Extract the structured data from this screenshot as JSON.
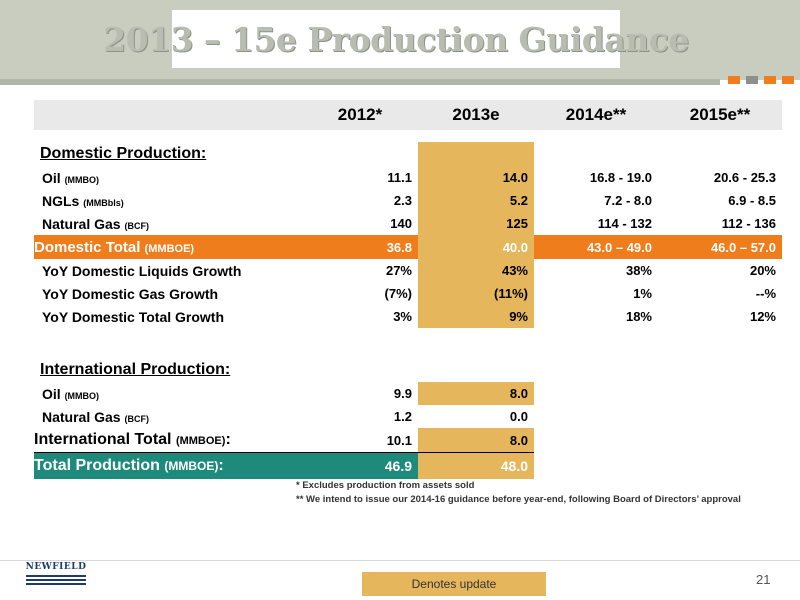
{
  "title": "2013 – 15e Production Guidance",
  "colors": {
    "banner": "#c9cdc0",
    "orange": "#f07d1c",
    "highlight": "#e5b65c",
    "teal": "#1e8a7c",
    "grey_square": "#8f8f8f"
  },
  "table": {
    "headers": [
      "",
      "2012*",
      "2013e",
      "2014e**",
      "2015e**"
    ],
    "domestic": {
      "heading": "Domestic Production:",
      "rows": [
        {
          "label": "Oil",
          "unit": "(MMBO)",
          "values": [
            "11.1",
            "14.0",
            "16.8 - 19.0",
            "20.6 - 25.3"
          ]
        },
        {
          "label": "NGLs",
          "unit": "(MMBbls)",
          "values": [
            "2.3",
            "5.2",
            "7.2 - 8.0",
            "6.9 - 8.5"
          ]
        },
        {
          "label": "Natural Gas",
          "unit": "(BCF)",
          "values": [
            "140",
            "125",
            "114 - 132",
            "112 - 136"
          ]
        }
      ],
      "total": {
        "label": "Domestic Total",
        "unit": "(MMBOE)",
        "values": [
          "36.8",
          "40.0",
          "43.0 – 49.0",
          "46.0 – 57.0"
        ]
      },
      "growth": [
        {
          "label": "YoY Domestic Liquids Growth",
          "values": [
            "27%",
            "43%",
            "38%",
            "20%"
          ]
        },
        {
          "label": "YoY Domestic Gas Growth",
          "values": [
            "(7%)",
            "(11%)",
            "1%",
            "--%"
          ]
        },
        {
          "label": "YoY Domestic Total Growth",
          "values": [
            "3%",
            "9%",
            "18%",
            "12%"
          ]
        }
      ]
    },
    "international": {
      "heading": "International Production:",
      "rows": [
        {
          "label": "Oil",
          "unit": "(MMBO)",
          "values": [
            "9.9",
            "8.0"
          ]
        },
        {
          "label": "Natural Gas",
          "unit": "(BCF)",
          "values": [
            "1.2",
            "0.0"
          ]
        }
      ],
      "total": {
        "label": "International Total",
        "unit": "(MMBOE)",
        "suffix": ":",
        "values": [
          "10.1",
          "8.0"
        ]
      }
    },
    "total_production": {
      "label": "Total Production",
      "unit": "(MMBOE)",
      "suffix": ":",
      "values": [
        "46.9",
        "48.0"
      ]
    }
  },
  "footnotes": [
    "* Excludes production from assets sold",
    "** We intend to issue our 2014-16 guidance before year-end, following Board of Directors’ approval"
  ],
  "logo_text": "NEWFIELD",
  "legend_label": "Denotes update",
  "page_number": "21"
}
